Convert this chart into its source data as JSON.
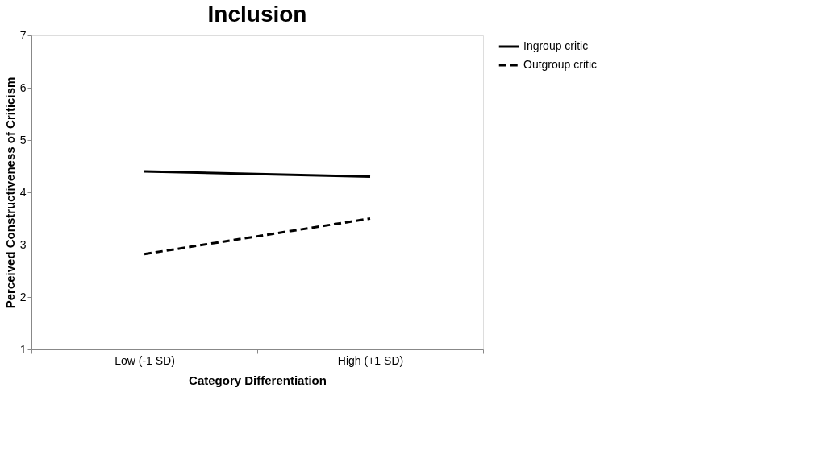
{
  "chart_data": {
    "type": "line",
    "title": "Inclusion",
    "xlabel": "Category Differentiation",
    "ylabel": "Perceived Constructiveness of Criticism",
    "categories": [
      "Low (-1 SD)",
      "High (+1 SD)"
    ],
    "series": [
      {
        "name": "Ingroup critic",
        "color": "#000000",
        "line_style": "solid",
        "values": [
          4.4,
          4.3
        ]
      },
      {
        "name": "Outgroup critic",
        "color": "#000000",
        "line_style": "dashed",
        "values": [
          2.82,
          3.5
        ]
      }
    ],
    "ylim": [
      1,
      7
    ],
    "yticks": [
      1,
      2,
      3,
      4,
      5,
      6,
      7
    ],
    "grid": false,
    "legend": "right",
    "marker": "none"
  }
}
